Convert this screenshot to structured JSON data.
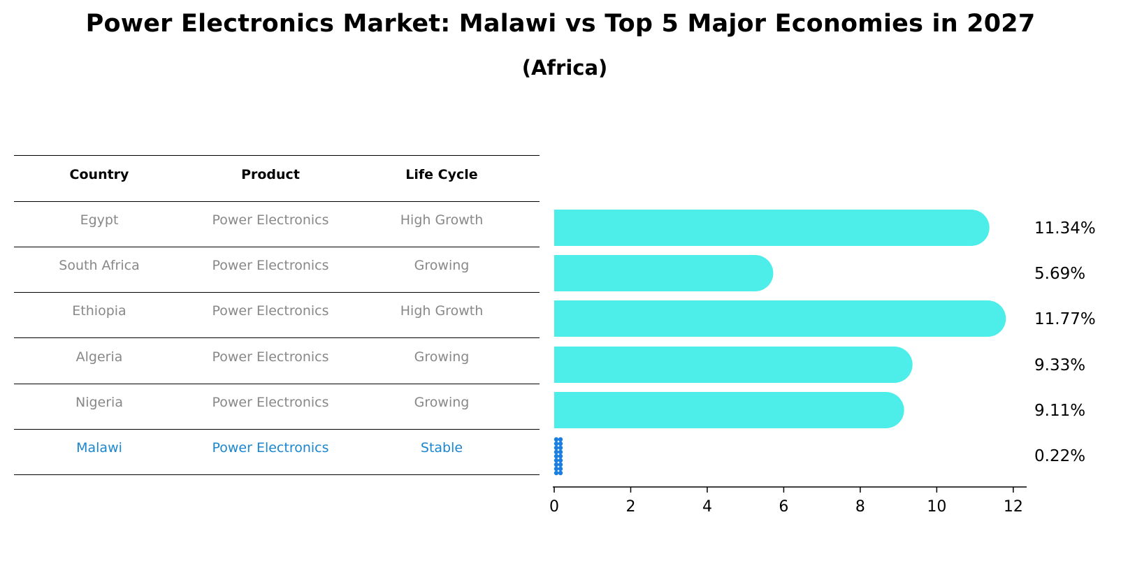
{
  "colors": {
    "bar": "#4deeea",
    "highlight": "#1a7fe0",
    "muted_text": "#888888",
    "highlight_text": "#1a86d0"
  },
  "chart_data": {
    "type": "bar",
    "orientation": "horizontal",
    "title": "Power Electronics Market: Malawi vs Top 5 Major Economies in 2027",
    "subtitle": "(Africa)",
    "table_headers": [
      "Country",
      "Product",
      "Life Cycle"
    ],
    "rows": [
      {
        "country": "Egypt",
        "product": "Power Electronics",
        "life_cycle": "High Growth",
        "value": 11.34,
        "label": "11.34%",
        "highlight": false
      },
      {
        "country": "South Africa",
        "product": "Power Electronics",
        "life_cycle": "Growing",
        "value": 5.69,
        "label": "5.69%",
        "highlight": false
      },
      {
        "country": "Ethiopia",
        "product": "Power Electronics",
        "life_cycle": "High Growth",
        "value": 11.77,
        "label": "11.77%",
        "highlight": false
      },
      {
        "country": "Algeria",
        "product": "Power Electronics",
        "life_cycle": "Growing",
        "value": 9.33,
        "label": "9.33%",
        "highlight": false
      },
      {
        "country": "Nigeria",
        "product": "Power Electronics",
        "life_cycle": "Growing",
        "value": 9.11,
        "label": "9.11%",
        "highlight": false
      },
      {
        "country": "Malawi",
        "product": "Power Electronics",
        "life_cycle": "Stable",
        "value": 0.22,
        "label": "0.22%",
        "highlight": true
      }
    ],
    "xlim": [
      0,
      12.35
    ],
    "xticks": [
      0,
      2,
      4,
      6,
      8,
      10,
      12
    ],
    "xtick_labels": [
      "0",
      "2",
      "4",
      "6",
      "8",
      "10",
      "12"
    ]
  }
}
